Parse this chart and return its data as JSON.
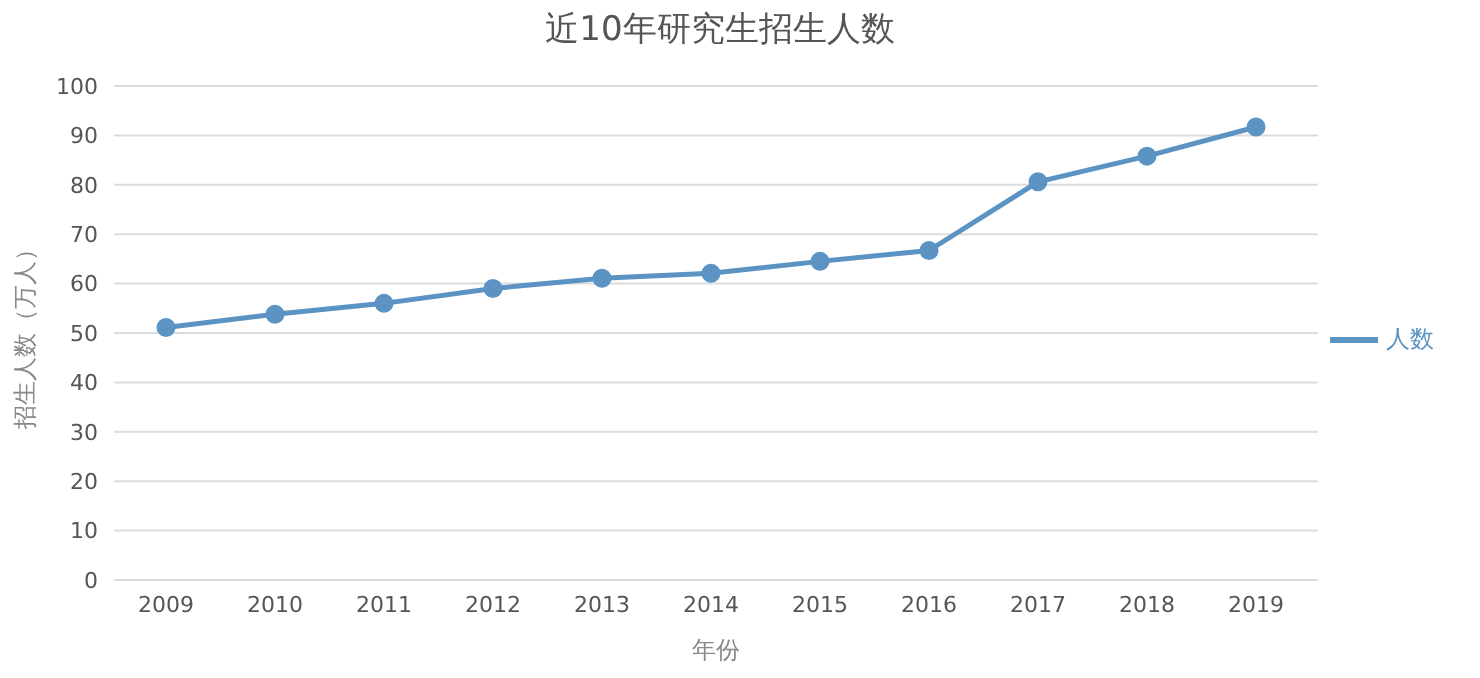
{
  "chart_data": {
    "type": "line",
    "title": "近10年研究生招生人数",
    "xlabel": "年份",
    "ylabel": "招生人数（万人）",
    "categories": [
      "2009",
      "2010",
      "2011",
      "2012",
      "2013",
      "2014",
      "2015",
      "2016",
      "2017",
      "2018",
      "2019"
    ],
    "series": [
      {
        "name": "人数",
        "color": "#5b93c3",
        "values": [
          51.1,
          53.8,
          56.0,
          59.0,
          61.1,
          62.1,
          64.5,
          66.7,
          80.6,
          85.8,
          91.7
        ]
      }
    ],
    "ylim": [
      0,
      100
    ],
    "yticks": [
      0,
      10,
      20,
      30,
      40,
      50,
      60,
      70,
      80,
      90,
      100
    ],
    "grid": "y",
    "legend": "right",
    "marker": "circle",
    "line_style": "solid"
  }
}
